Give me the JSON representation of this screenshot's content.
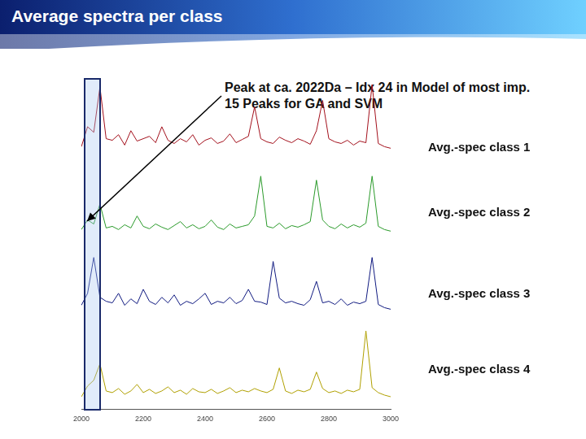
{
  "title": "Average spectra per class",
  "annotation": "Peak at ca. 2022Da – Idx 24 in Model of most imp. 15 Peaks for GA and SVM",
  "highlight_range": [
    2008,
    2062
  ],
  "chart_data": [
    {
      "type": "line",
      "title": "Avg.-spec class 1",
      "color": "#a3101c",
      "x": [
        2000,
        2020,
        2040,
        2060,
        2080,
        2100,
        2120,
        2140,
        2160,
        2180,
        2200,
        2220,
        2240,
        2260,
        2280,
        2300,
        2320,
        2340,
        2360,
        2380,
        2400,
        2420,
        2440,
        2460,
        2480,
        2500,
        2520,
        2540,
        2560,
        2580,
        2600,
        2620,
        2640,
        2660,
        2680,
        2700,
        2720,
        2740,
        2760,
        2780,
        2800,
        2820,
        2840,
        2860,
        2880,
        2900,
        2920,
        2940,
        2960,
        2980,
        3000
      ],
      "values": [
        20,
        45,
        38,
        95,
        30,
        28,
        35,
        22,
        40,
        27,
        30,
        33,
        25,
        45,
        28,
        24,
        30,
        26,
        35,
        22,
        28,
        31,
        24,
        27,
        36,
        25,
        29,
        33,
        70,
        30,
        26,
        24,
        32,
        28,
        25,
        30,
        27,
        23,
        40,
        78,
        30,
        26,
        24,
        28,
        22,
        27,
        25,
        98,
        24,
        20,
        18
      ],
      "xlim": [
        2000,
        3000
      ],
      "ylim": [
        0,
        100
      ],
      "grid": false,
      "tick_labels": false
    },
    {
      "type": "line",
      "title": "Avg.-spec class 2",
      "color": "#2a9a2a",
      "x": [
        2000,
        2020,
        2040,
        2060,
        2080,
        2100,
        2120,
        2140,
        2160,
        2180,
        2200,
        2220,
        2240,
        2260,
        2280,
        2300,
        2320,
        2340,
        2360,
        2380,
        2400,
        2420,
        2440,
        2460,
        2480,
        2500,
        2520,
        2540,
        2560,
        2580,
        2600,
        2620,
        2640,
        2660,
        2680,
        2700,
        2720,
        2740,
        2760,
        2780,
        2800,
        2820,
        2840,
        2860,
        2880,
        2900,
        2920,
        2940,
        2960,
        2980,
        3000
      ],
      "values": [
        18,
        30,
        25,
        50,
        20,
        22,
        18,
        24,
        20,
        35,
        22,
        19,
        25,
        21,
        18,
        23,
        28,
        20,
        24,
        19,
        22,
        30,
        21,
        18,
        25,
        20,
        22,
        24,
        35,
        85,
        22,
        20,
        26,
        19,
        23,
        21,
        24,
        28,
        80,
        30,
        22,
        19,
        25,
        20,
        24,
        21,
        26,
        85,
        22,
        18,
        16
      ],
      "xlim": [
        2000,
        3000
      ],
      "ylim": [
        0,
        100
      ],
      "grid": false,
      "tick_labels": false
    },
    {
      "type": "line",
      "title": "Avg.-spec class 3",
      "color": "#101a80",
      "x": [
        2000,
        2020,
        2040,
        2060,
        2080,
        2100,
        2120,
        2140,
        2160,
        2180,
        2200,
        2220,
        2240,
        2260,
        2280,
        2300,
        2320,
        2340,
        2360,
        2380,
        2400,
        2420,
        2440,
        2460,
        2480,
        2500,
        2520,
        2540,
        2560,
        2580,
        2600,
        2620,
        2640,
        2660,
        2680,
        2700,
        2720,
        2740,
        2760,
        2780,
        2800,
        2820,
        2840,
        2860,
        2880,
        2900,
        2920,
        2940,
        2960,
        2980,
        3000
      ],
      "values": [
        25,
        40,
        85,
        35,
        30,
        28,
        40,
        25,
        33,
        27,
        45,
        30,
        26,
        35,
        28,
        38,
        25,
        30,
        27,
        33,
        40,
        26,
        30,
        28,
        35,
        27,
        31,
        45,
        30,
        29,
        26,
        80,
        34,
        28,
        30,
        27,
        25,
        32,
        55,
        28,
        30,
        26,
        33,
        25,
        29,
        27,
        30,
        85,
        26,
        22,
        20
      ],
      "xlim": [
        2000,
        3000
      ],
      "ylim": [
        0,
        100
      ],
      "grid": false,
      "tick_labels": false
    },
    {
      "type": "line",
      "title": "Avg.-spec class 4",
      "color": "#b0a000",
      "x": [
        2000,
        2020,
        2040,
        2060,
        2080,
        2100,
        2120,
        2140,
        2160,
        2180,
        2200,
        2220,
        2240,
        2260,
        2280,
        2300,
        2320,
        2340,
        2360,
        2380,
        2400,
        2420,
        2440,
        2460,
        2480,
        2500,
        2520,
        2540,
        2560,
        2580,
        2600,
        2620,
        2640,
        2660,
        2680,
        2700,
        2720,
        2740,
        2760,
        2780,
        2800,
        2820,
        2840,
        2860,
        2880,
        2900,
        2920,
        2940,
        2960,
        2980,
        3000
      ],
      "values": [
        15,
        28,
        35,
        55,
        22,
        20,
        25,
        18,
        22,
        30,
        20,
        24,
        19,
        22,
        27,
        20,
        23,
        18,
        25,
        21,
        20,
        24,
        19,
        22,
        26,
        20,
        23,
        21,
        25,
        22,
        20,
        24,
        50,
        22,
        19,
        23,
        21,
        24,
        45,
        25,
        20,
        22,
        19,
        23,
        21,
        24,
        95,
        26,
        20,
        17,
        15
      ],
      "xlim": [
        2000,
        3000
      ],
      "ylim": [
        0,
        100
      ],
      "grid": false,
      "tick_labels": "x",
      "xticks": [
        2000,
        2200,
        2400,
        2600,
        2800,
        3000
      ]
    }
  ]
}
